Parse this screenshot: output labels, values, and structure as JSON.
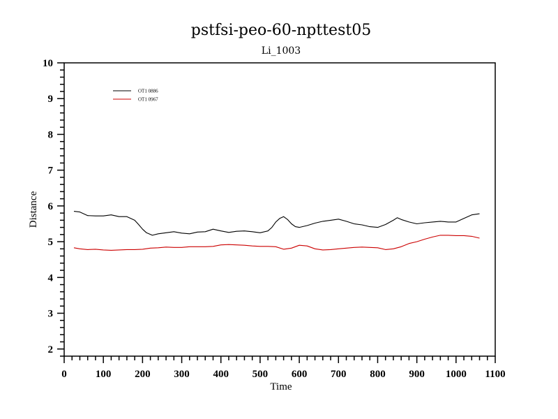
{
  "chart_data": {
    "type": "line",
    "title": "pstfsi-peo-60-npttest05",
    "subtitle": "Li_1003",
    "xlabel": "Time",
    "ylabel": "Distance",
    "xlim": [
      0,
      1100
    ],
    "ylim": [
      1.8,
      10
    ],
    "x_ticks": [
      0,
      100,
      200,
      300,
      400,
      500,
      600,
      700,
      800,
      900,
      1000,
      1100
    ],
    "y_ticks": [
      2,
      3,
      4,
      5,
      6,
      7,
      8,
      9,
      10
    ],
    "legend_position": "top-left",
    "grid": false,
    "series": [
      {
        "name": "OT1 0886",
        "color": "#000000",
        "x": [
          25,
          40,
          60,
          80,
          100,
          120,
          140,
          160,
          180,
          190,
          200,
          210,
          225,
          240,
          260,
          280,
          300,
          320,
          340,
          360,
          380,
          400,
          420,
          440,
          460,
          480,
          500,
          520,
          530,
          540,
          550,
          560,
          570,
          580,
          590,
          600,
          620,
          640,
          660,
          680,
          700,
          720,
          740,
          760,
          780,
          800,
          820,
          840,
          850,
          860,
          880,
          900,
          920,
          940,
          960,
          980,
          1000,
          1020,
          1040,
          1060
        ],
        "values": [
          5.85,
          5.83,
          5.73,
          5.72,
          5.72,
          5.75,
          5.7,
          5.7,
          5.6,
          5.48,
          5.35,
          5.25,
          5.18,
          5.22,
          5.25,
          5.28,
          5.24,
          5.22,
          5.27,
          5.28,
          5.35,
          5.3,
          5.26,
          5.29,
          5.3,
          5.28,
          5.25,
          5.3,
          5.4,
          5.55,
          5.65,
          5.7,
          5.62,
          5.5,
          5.42,
          5.4,
          5.45,
          5.52,
          5.57,
          5.6,
          5.63,
          5.57,
          5.5,
          5.47,
          5.42,
          5.4,
          5.48,
          5.6,
          5.67,
          5.62,
          5.55,
          5.5,
          5.53,
          5.55,
          5.57,
          5.55,
          5.55,
          5.65,
          5.75,
          5.78
        ]
      },
      {
        "name": "OT1 0967",
        "color": "#cc0000",
        "x": [
          25,
          40,
          60,
          80,
          100,
          120,
          140,
          160,
          180,
          200,
          220,
          240,
          260,
          280,
          300,
          320,
          340,
          360,
          380,
          400,
          420,
          440,
          460,
          480,
          500,
          520,
          540,
          560,
          580,
          600,
          620,
          640,
          660,
          680,
          700,
          720,
          740,
          760,
          780,
          800,
          820,
          840,
          860,
          880,
          900,
          920,
          940,
          960,
          980,
          1000,
          1020,
          1040,
          1060
        ],
        "values": [
          4.83,
          4.8,
          4.78,
          4.79,
          4.77,
          4.76,
          4.77,
          4.78,
          4.78,
          4.79,
          4.82,
          4.83,
          4.85,
          4.84,
          4.84,
          4.86,
          4.86,
          4.86,
          4.87,
          4.91,
          4.92,
          4.91,
          4.9,
          4.88,
          4.87,
          4.87,
          4.86,
          4.79,
          4.82,
          4.9,
          4.88,
          4.8,
          4.77,
          4.78,
          4.8,
          4.82,
          4.84,
          4.85,
          4.84,
          4.83,
          4.78,
          4.8,
          4.86,
          4.95,
          5.0,
          5.07,
          5.13,
          5.18,
          5.18,
          5.17,
          5.17,
          5.15,
          5.1
        ]
      }
    ]
  }
}
